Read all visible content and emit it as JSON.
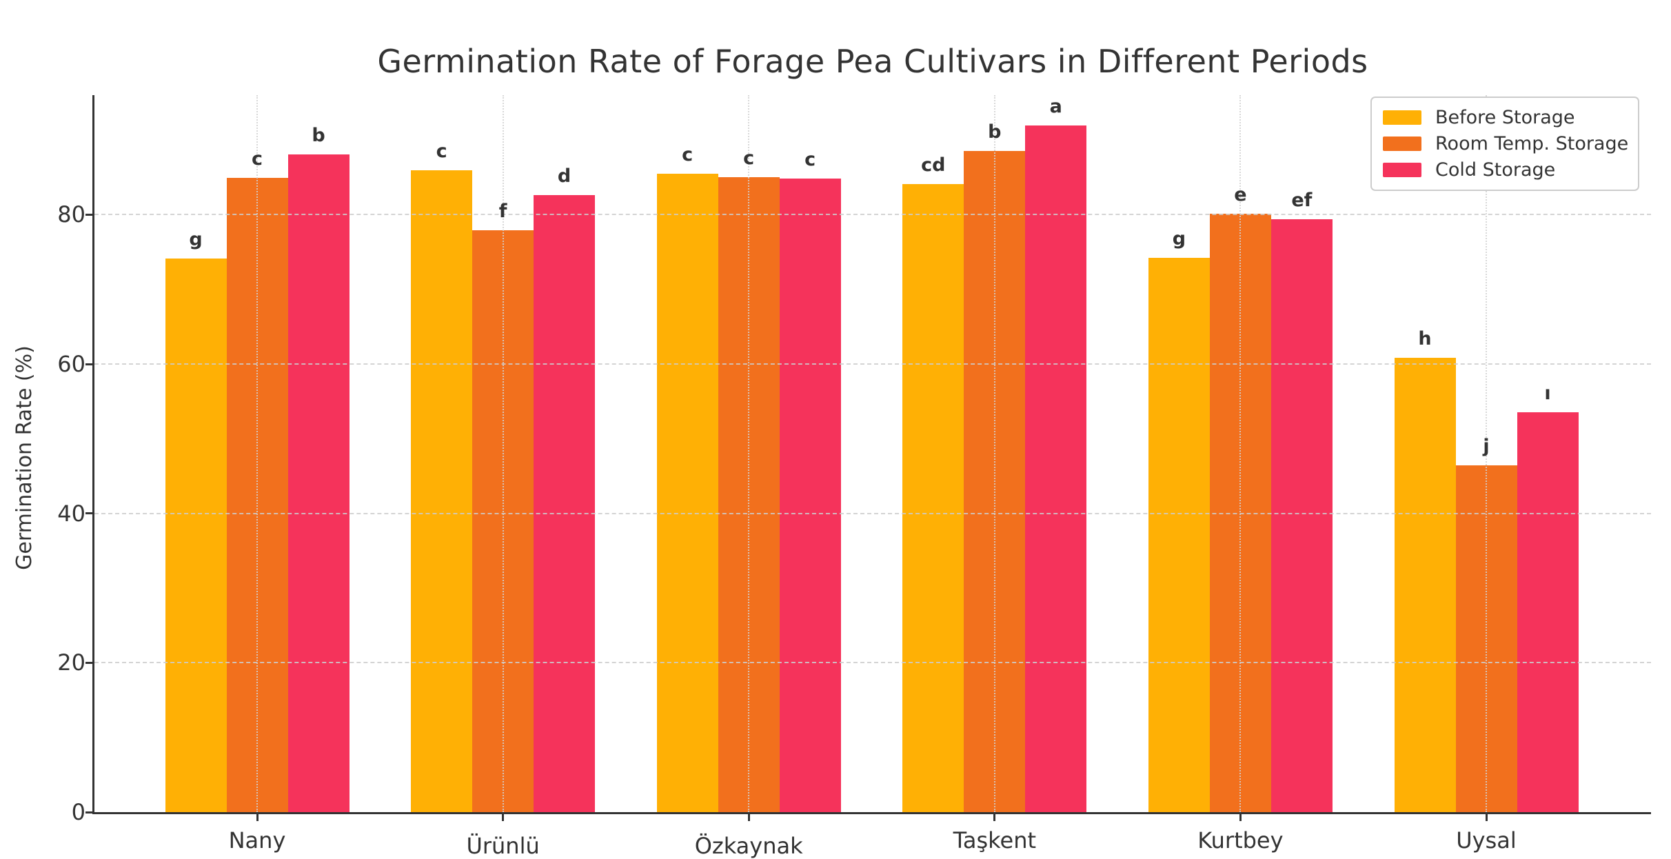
{
  "figure": {
    "title": "Germination Rate of Forage Pea Cultivars in Different Periods"
  },
  "chart_data": {
    "type": "bar",
    "title": "Germination Rate of Forage Pea Cultivars in Different Periods",
    "xlabel": "",
    "ylabel": "Germination Rate (%)",
    "ylim": [
      0,
      96
    ],
    "yticks": [
      0,
      20,
      40,
      60,
      80
    ],
    "grid": {
      "horizontal": "dashed",
      "vertical": "dotted at category centers",
      "color": "#cccccc"
    },
    "legend_position": "upper right",
    "categories": [
      "Nany",
      "Ürünlü",
      "Özkaynak",
      "Taşkent",
      "Kurtbey",
      "Uysal"
    ],
    "series": [
      {
        "name": "Before Storage",
        "color": "#FFB005",
        "values": [
          74.1,
          85.9,
          85.5,
          84.1,
          74.2,
          60.8
        ],
        "bar_labels": [
          "g",
          "c",
          "c",
          "cd",
          "g",
          "h"
        ]
      },
      {
        "name": "Room Temp. Storage",
        "color": "#F2701D",
        "values": [
          84.9,
          77.9,
          85.0,
          88.5,
          80.1,
          46.4
        ],
        "bar_labels": [
          "c",
          "f",
          "c",
          "b",
          "e",
          "j"
        ]
      },
      {
        "name": "Cold Storage",
        "color": "#F5335B",
        "values": [
          88.1,
          82.6,
          84.8,
          91.9,
          79.4,
          53.5
        ],
        "bar_labels": [
          "b",
          "d",
          "c",
          "a",
          "ef",
          "ı"
        ]
      }
    ],
    "style": {
      "spine_color": "#333333",
      "text_color": "#333333",
      "grid_color": "#cccccc",
      "background": "#ffffff"
    }
  }
}
